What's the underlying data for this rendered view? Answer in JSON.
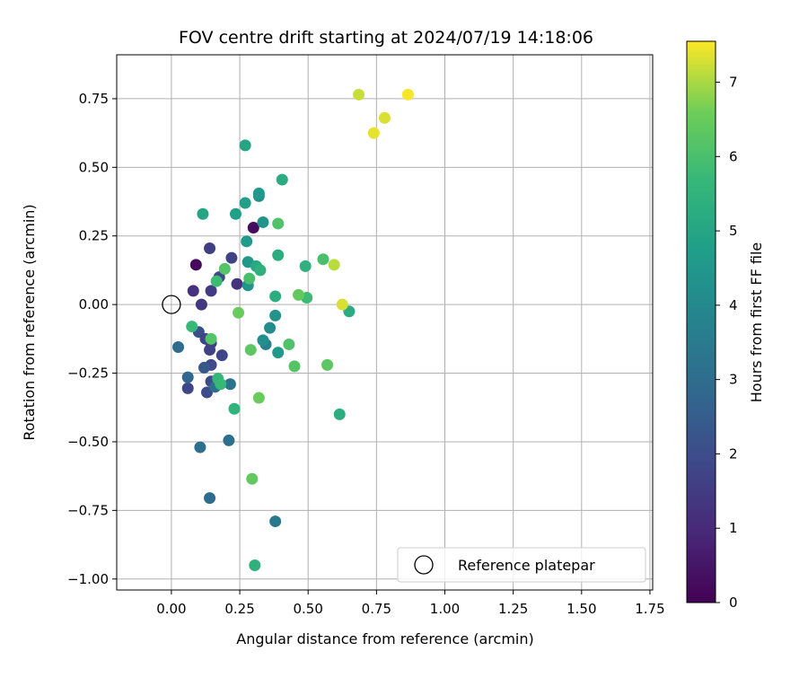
{
  "chart_data": {
    "type": "scatter",
    "title": "FOV centre drift starting at 2024/07/19 14:18:06",
    "xlabel": "Angular distance from reference (arcmin)",
    "ylabel": "Rotation from reference (arcmin)",
    "xlim": [
      -0.2,
      1.76
    ],
    "ylim": [
      -1.04,
      0.91
    ],
    "xticks": [
      0.0,
      0.25,
      0.5,
      0.75,
      1.0,
      1.25,
      1.5,
      1.75
    ],
    "xtick_labels": [
      "0.00",
      "0.25",
      "0.50",
      "0.75",
      "1.00",
      "1.25",
      "1.50",
      "1.75"
    ],
    "yticks": [
      -1.0,
      -0.75,
      -0.5,
      -0.25,
      0.0,
      0.25,
      0.5,
      0.75
    ],
    "ytick_labels": [
      "−1.00",
      "−0.75",
      "−0.50",
      "−0.25",
      "0.00",
      "0.25",
      "0.50",
      "0.75"
    ],
    "grid": true,
    "colormap": "viridis",
    "colorbar": {
      "label": "Hours from first FF file",
      "range": [
        0,
        7.55
      ],
      "ticks": [
        0,
        1,
        2,
        3,
        4,
        5,
        6,
        7
      ],
      "tick_labels": [
        "0",
        "1",
        "2",
        "3",
        "4",
        "5",
        "6",
        "7"
      ]
    },
    "legend": {
      "location": "lower-right",
      "entries": [
        {
          "label": "Reference platepar",
          "marker": "open-circle"
        }
      ]
    },
    "reference_point": {
      "x": 0.0,
      "y": 0.0
    },
    "points": [
      {
        "x": 0.09,
        "y": 0.145,
        "c": 0.2
      },
      {
        "x": 0.3,
        "y": 0.28,
        "c": 0.3
      },
      {
        "x": 0.08,
        "y": 0.05,
        "c": 1.2
      },
      {
        "x": 0.11,
        "y": 0.0,
        "c": 1.4
      },
      {
        "x": 0.145,
        "y": 0.05,
        "c": 1.5
      },
      {
        "x": 0.14,
        "y": 0.205,
        "c": 1.6
      },
      {
        "x": 0.22,
        "y": 0.17,
        "c": 1.7
      },
      {
        "x": 0.24,
        "y": 0.075,
        "c": 1.3
      },
      {
        "x": 0.175,
        "y": 0.1,
        "c": 1.9
      },
      {
        "x": 0.1,
        "y": -0.1,
        "c": 2.1
      },
      {
        "x": 0.125,
        "y": -0.125,
        "c": 1.8
      },
      {
        "x": 0.145,
        "y": -0.14,
        "c": 1.6
      },
      {
        "x": 0.14,
        "y": -0.165,
        "c": 1.7
      },
      {
        "x": 0.185,
        "y": -0.185,
        "c": 1.8
      },
      {
        "x": 0.145,
        "y": -0.22,
        "c": 1.9
      },
      {
        "x": 0.06,
        "y": -0.305,
        "c": 1.8
      },
      {
        "x": 0.145,
        "y": -0.28,
        "c": 1.9
      },
      {
        "x": 0.13,
        "y": -0.32,
        "c": 2.0
      },
      {
        "x": 0.12,
        "y": -0.23,
        "c": 2.3
      },
      {
        "x": 0.06,
        "y": -0.265,
        "c": 2.8
      },
      {
        "x": 0.025,
        "y": -0.155,
        "c": 3.0
      },
      {
        "x": 0.16,
        "y": -0.3,
        "c": 3.1
      },
      {
        "x": 0.215,
        "y": -0.29,
        "c": 3.2
      },
      {
        "x": 0.21,
        "y": -0.495,
        "c": 3.1
      },
      {
        "x": 0.105,
        "y": -0.52,
        "c": 3.1
      },
      {
        "x": 0.14,
        "y": -0.705,
        "c": 3.0
      },
      {
        "x": 0.38,
        "y": -0.79,
        "c": 3.4
      },
      {
        "x": 0.345,
        "y": -0.145,
        "c": 3.7
      },
      {
        "x": 0.36,
        "y": -0.085,
        "c": 4.1
      },
      {
        "x": 0.38,
        "y": -0.04,
        "c": 4.3
      },
      {
        "x": 0.335,
        "y": -0.13,
        "c": 4.2
      },
      {
        "x": 0.39,
        "y": -0.175,
        "c": 4.5
      },
      {
        "x": 0.28,
        "y": 0.07,
        "c": 4.4
      },
      {
        "x": 0.28,
        "y": 0.155,
        "c": 4.5
      },
      {
        "x": 0.275,
        "y": 0.23,
        "c": 4.6
      },
      {
        "x": 0.27,
        "y": 0.37,
        "c": 4.8
      },
      {
        "x": 0.32,
        "y": 0.395,
        "c": 4.2
      },
      {
        "x": 0.32,
        "y": 0.405,
        "c": 4.6
      },
      {
        "x": 0.335,
        "y": 0.3,
        "c": 4.4
      },
      {
        "x": 0.235,
        "y": 0.33,
        "c": 4.8
      },
      {
        "x": 0.115,
        "y": 0.33,
        "c": 5.0
      },
      {
        "x": 0.27,
        "y": 0.58,
        "c": 5.0
      },
      {
        "x": 0.405,
        "y": 0.455,
        "c": 5.2
      },
      {
        "x": 0.31,
        "y": 0.14,
        "c": 5.1
      },
      {
        "x": 0.325,
        "y": 0.125,
        "c": 5.4
      },
      {
        "x": 0.39,
        "y": 0.18,
        "c": 5.3
      },
      {
        "x": 0.38,
        "y": 0.03,
        "c": 5.3
      },
      {
        "x": 0.49,
        "y": 0.14,
        "c": 5.4
      },
      {
        "x": 0.65,
        "y": -0.025,
        "c": 5.2
      },
      {
        "x": 0.615,
        "y": -0.4,
        "c": 5.3
      },
      {
        "x": 0.305,
        "y": -0.95,
        "c": 5.4
      },
      {
        "x": 0.23,
        "y": -0.38,
        "c": 5.5
      },
      {
        "x": 0.17,
        "y": -0.27,
        "c": 5.6
      },
      {
        "x": 0.18,
        "y": -0.29,
        "c": 5.7
      },
      {
        "x": 0.075,
        "y": -0.08,
        "c": 5.7
      },
      {
        "x": 0.165,
        "y": 0.085,
        "c": 5.8
      },
      {
        "x": 0.495,
        "y": 0.025,
        "c": 5.8
      },
      {
        "x": 0.555,
        "y": 0.165,
        "c": 6.0
      },
      {
        "x": 0.43,
        "y": -0.145,
        "c": 6.1
      },
      {
        "x": 0.45,
        "y": -0.225,
        "c": 6.2
      },
      {
        "x": 0.57,
        "y": -0.22,
        "c": 6.3
      },
      {
        "x": 0.29,
        "y": -0.165,
        "c": 6.3
      },
      {
        "x": 0.145,
        "y": -0.125,
        "c": 6.2
      },
      {
        "x": 0.195,
        "y": 0.13,
        "c": 6.2
      },
      {
        "x": 0.39,
        "y": 0.295,
        "c": 6.1
      },
      {
        "x": 0.465,
        "y": 0.035,
        "c": 6.4
      },
      {
        "x": 0.285,
        "y": 0.095,
        "c": 6.0
      },
      {
        "x": 0.245,
        "y": -0.03,
        "c": 6.5
      },
      {
        "x": 0.32,
        "y": -0.34,
        "c": 6.5
      },
      {
        "x": 0.295,
        "y": -0.635,
        "c": 6.4
      },
      {
        "x": 0.595,
        "y": 0.145,
        "c": 7.1
      },
      {
        "x": 0.625,
        "y": 0.0,
        "c": 7.3
      },
      {
        "x": 0.685,
        "y": 0.765,
        "c": 7.2
      },
      {
        "x": 0.74,
        "y": 0.625,
        "c": 7.4
      },
      {
        "x": 0.78,
        "y": 0.68,
        "c": 7.3
      },
      {
        "x": 0.865,
        "y": 0.765,
        "c": 7.5
      }
    ]
  }
}
